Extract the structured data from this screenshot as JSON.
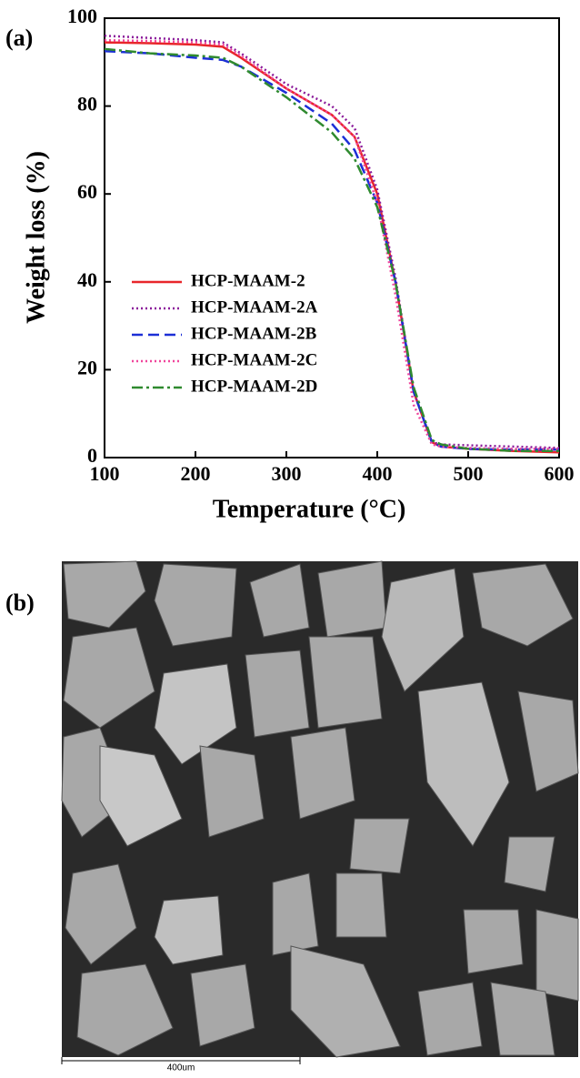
{
  "panel_labels": [
    "(a)",
    "(b)"
  ],
  "scale_bar_label": "400um",
  "chart_data": {
    "type": "line",
    "xlabel": "Temperature (°C)",
    "ylabel": "Weight loss (%)",
    "x": [
      100,
      150,
      200,
      230,
      250,
      300,
      350,
      375,
      400,
      420,
      440,
      460,
      470,
      500,
      550,
      600
    ],
    "series": [
      {
        "name": "HCP-MAAM-2",
        "color": "#e8262a",
        "style": "solid",
        "values": [
          94.5,
          94.3,
          94,
          93.5,
          91,
          84,
          78,
          73,
          60,
          40,
          15,
          3.5,
          2.5,
          2,
          1.5,
          1.2
        ]
      },
      {
        "name": "HCP-MAAM-2A",
        "color": "#8b1a9a",
        "style": "dotted",
        "values": [
          96,
          95.5,
          95,
          94.5,
          92,
          85,
          80,
          75,
          61,
          41,
          15,
          3.5,
          3,
          2.8,
          2.5,
          2.2
        ]
      },
      {
        "name": "HCP-MAAM-2B",
        "color": "#1c2fd6",
        "style": "dashed",
        "values": [
          92.5,
          92,
          91,
          90.5,
          89,
          83,
          76,
          70,
          58,
          40,
          15,
          3.5,
          2.5,
          2,
          1.8,
          1.8
        ]
      },
      {
        "name": "HCP-MAAM-2C",
        "color": "#f0459c",
        "style": "dotted",
        "values": [
          95,
          94.8,
          94.5,
          94,
          91.5,
          84,
          78,
          73,
          58,
          37,
          12,
          3,
          2.5,
          2.2,
          2,
          2
        ]
      },
      {
        "name": "HCP-MAAM-2D",
        "color": "#2f8a2f",
        "style": "dashdot",
        "values": [
          93,
          92,
          91.5,
          91,
          89,
          82,
          74,
          68,
          57,
          40,
          16,
          4,
          3,
          2,
          1.5,
          1.5
        ]
      }
    ],
    "xlim": [
      100,
      600
    ],
    "ylim": [
      0,
      100
    ],
    "xticks": [
      100,
      200,
      300,
      400,
      500,
      600
    ],
    "yticks": [
      0,
      20,
      40,
      60,
      80,
      100
    ],
    "grid": false
  }
}
